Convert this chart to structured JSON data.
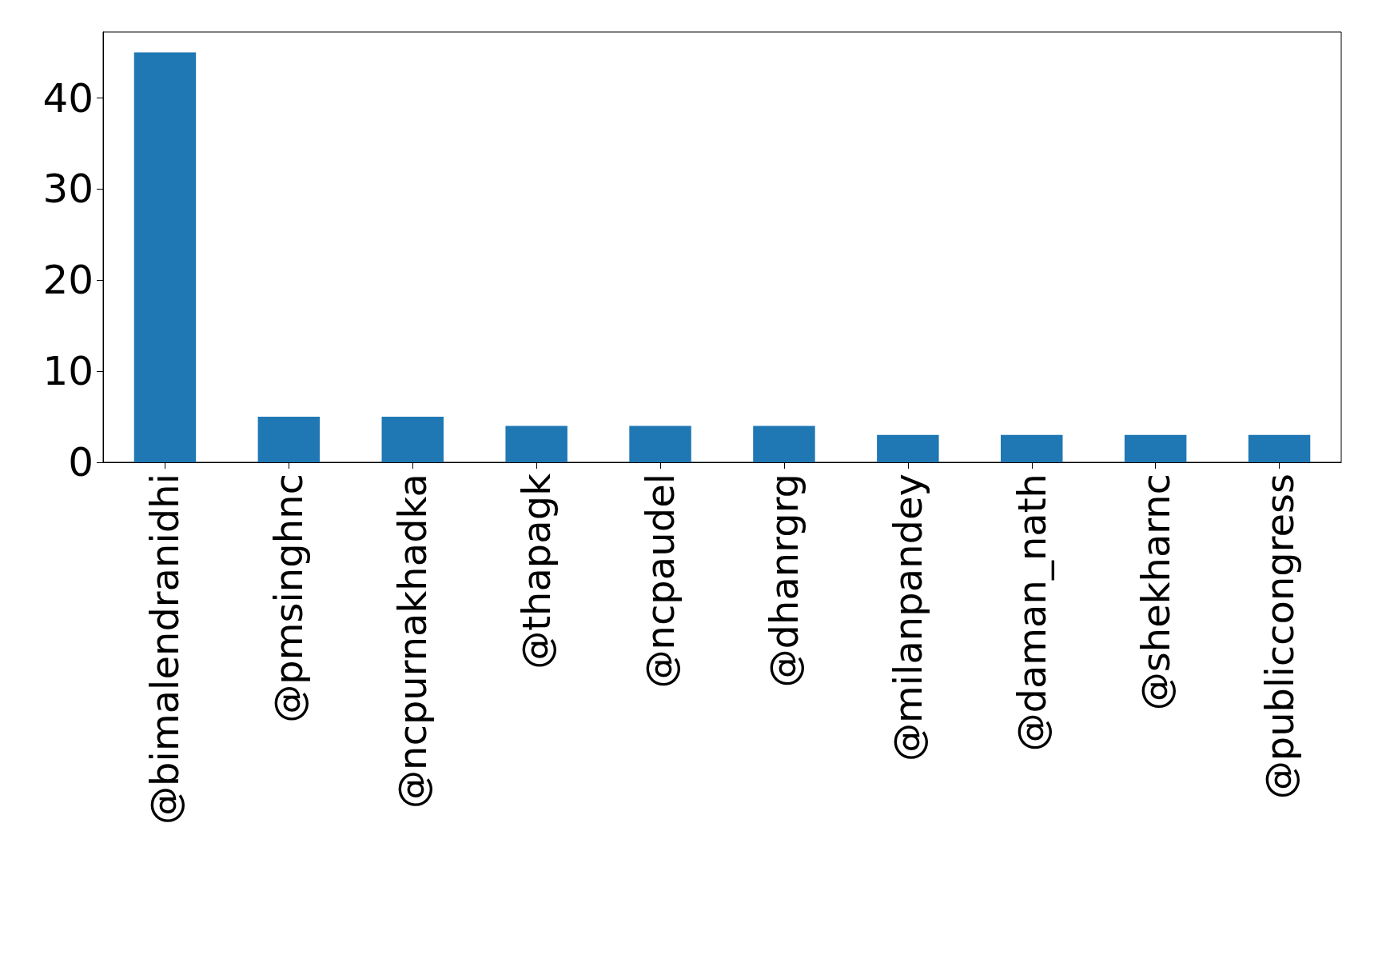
{
  "chart_data": {
    "type": "bar",
    "categories": [
      "@bimalendranidhi",
      "@pmsinghnc",
      "@ncpurnakhadka",
      "@thapagk",
      "@ncpaudel",
      "@dhanrgrg",
      "@milanpandey",
      "@daman_nath",
      "@shekharnc",
      "@publiccongress"
    ],
    "values": [
      45,
      5,
      5,
      4,
      4,
      4,
      3,
      3,
      3,
      3
    ],
    "color": "#1f77b4",
    "ylim": [
      0,
      47.25
    ],
    "yticks": [
      0,
      10,
      20,
      30,
      40
    ],
    "grid": false
  }
}
